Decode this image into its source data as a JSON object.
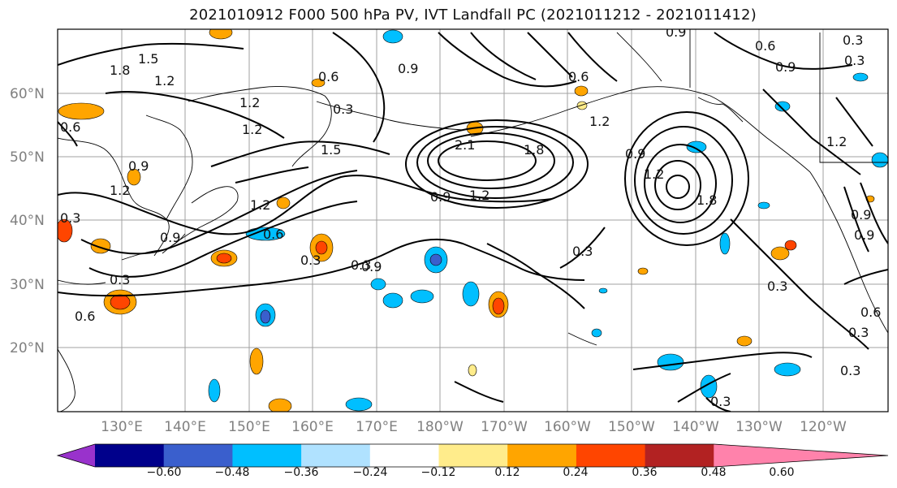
{
  "title": "2021010912 F000 500 hPa PV, IVT Landfall PC (2021011212 - 2021011412)",
  "latitude_labels": [
    "60°N",
    "50°N",
    "40°N",
    "30°N",
    "20°N"
  ],
  "longitude_labels": [
    "130°E",
    "140°E",
    "150°E",
    "160°E",
    "170°E",
    "180°W",
    "170°W",
    "160°W",
    "150°W",
    "140°W",
    "130°W",
    "120°W"
  ],
  "contour_labels": [
    "1.8",
    "1.5",
    "1.2",
    "0.9",
    "0.6",
    "0.3",
    "0.6",
    "1.2",
    "0.3",
    "0.9",
    "0.9",
    "0.6",
    "0.3",
    "0.6",
    "0.9",
    "0.3",
    "0.9",
    "1.2",
    "0.6",
    "1.2",
    "1.5",
    "1.2",
    "0.9",
    "2.1",
    "1.8",
    "0.9",
    "1.2",
    "0.9",
    "1.2",
    "1.8",
    "0.9",
    "1.2",
    "0.6",
    "0.3",
    "0.3",
    "0.3",
    "0.3",
    "0.3",
    "0.3",
    "0.9",
    "0.6",
    "0.3",
    "0.3",
    "1.2"
  ],
  "colorbar": {
    "colors": [
      "#9932cc",
      "#00008b",
      "#3a5fcd",
      "#00bfff",
      "#b0e2ff",
      "#ffffff",
      "#ffec8b",
      "#ffa500",
      "#ff4500",
      "#b22222",
      "#ff82ab"
    ],
    "tick_labels": [
      "−0.60",
      "−0.48",
      "−0.36",
      "−0.24",
      "−0.12",
      "0.12",
      "0.24",
      "0.36",
      "0.48",
      "0.60"
    ]
  }
}
